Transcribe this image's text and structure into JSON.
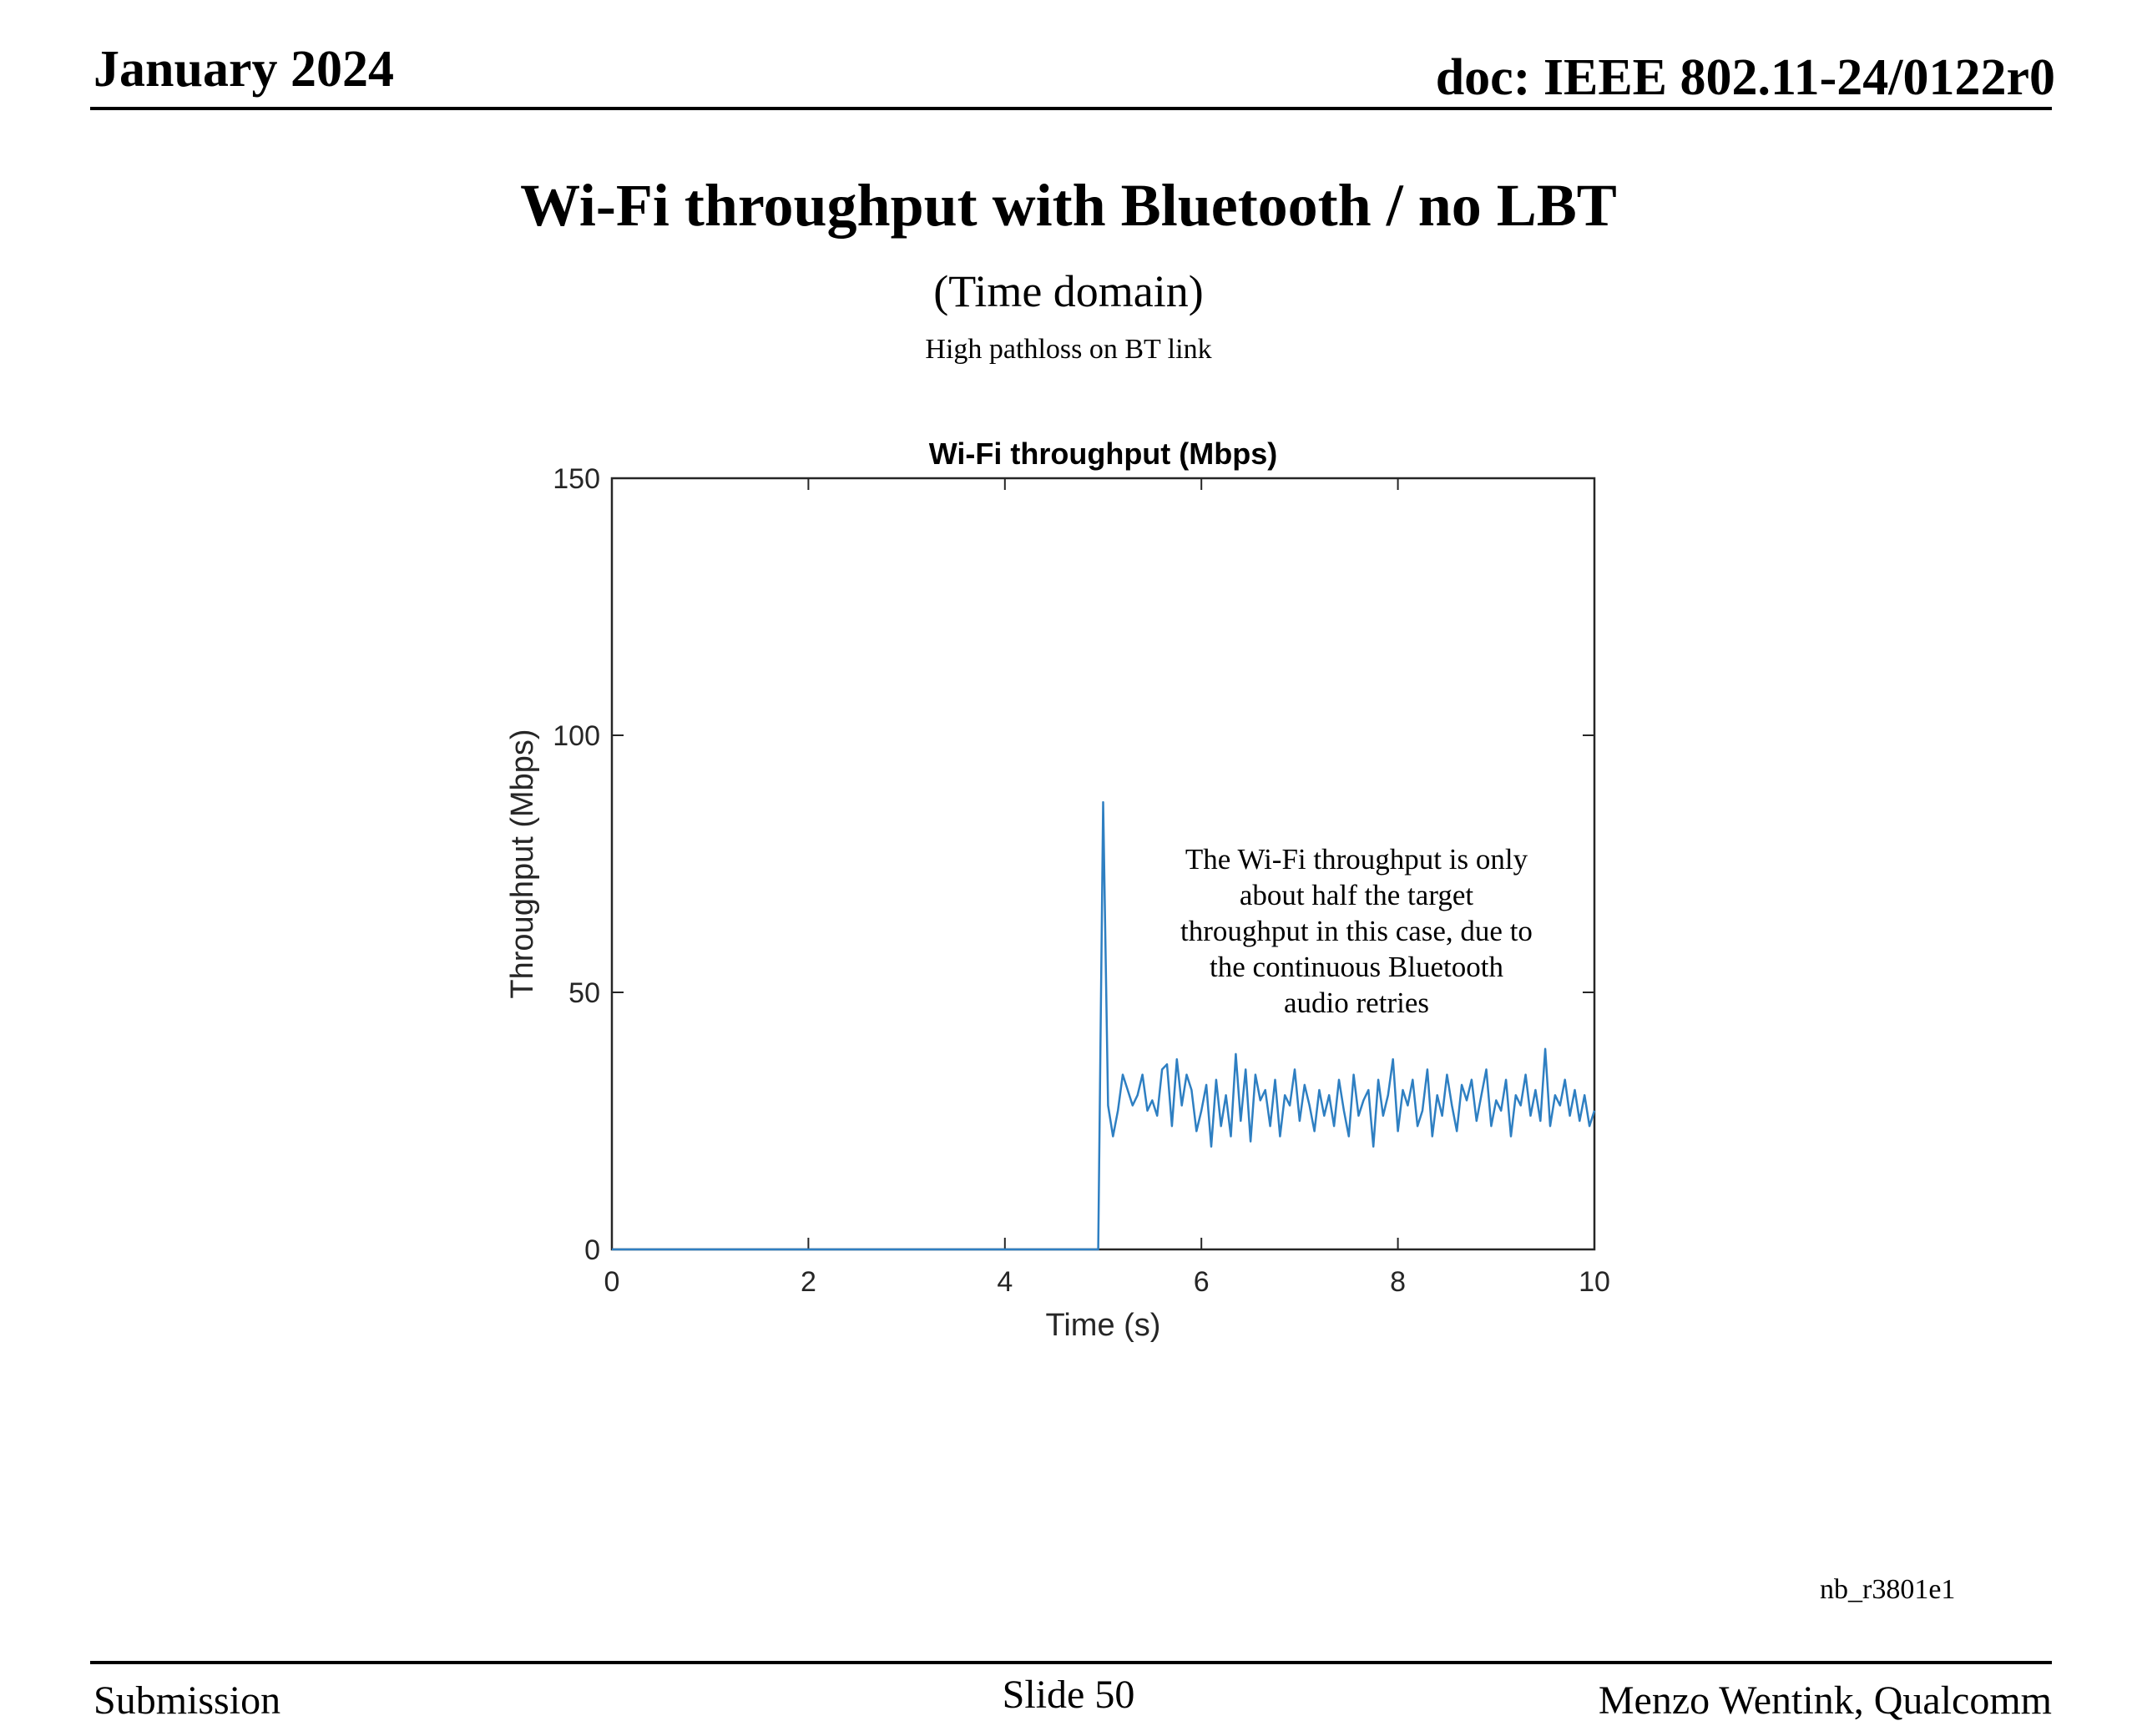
{
  "header": {
    "date": "January 2024",
    "doc": "doc: IEEE 802.11-24/0122r0"
  },
  "slide": {
    "title": "Wi-Fi throughput with Bluetooth / no LBT",
    "subtitle": "(Time domain)",
    "condition": "High pathloss on BT link",
    "annotation_lines": [
      "The Wi-Fi throughput is only",
      "about half the target",
      "throughput in this case, due to",
      "the continuous Bluetooth",
      "audio retries"
    ],
    "tag": "nb_r3801e1"
  },
  "footer": {
    "left": "Submission",
    "center": "Slide 50",
    "right": "Menzo Wentink, Qualcomm"
  },
  "chart_data": {
    "type": "line",
    "title": "Wi-Fi throughput (Mbps)",
    "xlabel": "Time (s)",
    "ylabel": "Throughput (Mbps)",
    "xlim": [
      0,
      10
    ],
    "ylim": [
      0,
      150
    ],
    "xticks": [
      0,
      2,
      4,
      6,
      8,
      10
    ],
    "yticks": [
      0,
      50,
      100,
      150
    ],
    "grid": false,
    "color": "#2e7fc2",
    "series": [
      {
        "x": [
          0,
          0.5,
          1,
          1.5,
          2,
          2.5,
          3,
          3.5,
          4,
          4.5,
          4.95,
          5.0,
          5.05,
          5.1,
          5.15,
          5.2,
          5.25,
          5.3,
          5.35,
          5.4,
          5.45,
          5.5,
          5.55,
          5.6,
          5.65,
          5.7,
          5.75,
          5.8,
          5.85,
          5.9,
          5.95,
          6.0,
          6.05,
          6.1,
          6.15,
          6.2,
          6.25,
          6.3,
          6.35,
          6.4,
          6.45,
          6.5,
          6.55,
          6.6,
          6.65,
          6.7,
          6.75,
          6.8,
          6.85,
          6.9,
          6.95,
          7.0,
          7.05,
          7.1,
          7.15,
          7.2,
          7.25,
          7.3,
          7.35,
          7.4,
          7.45,
          7.5,
          7.55,
          7.6,
          7.65,
          7.7,
          7.75,
          7.8,
          7.85,
          7.9,
          7.95,
          8.0,
          8.05,
          8.1,
          8.15,
          8.2,
          8.25,
          8.3,
          8.35,
          8.4,
          8.45,
          8.5,
          8.55,
          8.6,
          8.65,
          8.7,
          8.75,
          8.8,
          8.85,
          8.9,
          8.95,
          9.0,
          9.05,
          9.1,
          9.15,
          9.2,
          9.25,
          9.3,
          9.35,
          9.4,
          9.45,
          9.5,
          9.55,
          9.6,
          9.65,
          9.7,
          9.75,
          9.8,
          9.85,
          9.9,
          9.95,
          10.0
        ],
        "y": [
          0,
          0,
          0,
          0,
          0,
          0,
          0,
          0,
          0,
          0,
          0,
          87,
          28,
          22,
          27,
          34,
          31,
          28,
          30,
          34,
          27,
          29,
          26,
          35,
          36,
          24,
          37,
          28,
          34,
          31,
          23,
          27,
          32,
          20,
          33,
          24,
          30,
          22,
          38,
          25,
          35,
          21,
          34,
          29,
          31,
          24,
          33,
          22,
          30,
          28,
          35,
          25,
          32,
          28,
          23,
          31,
          26,
          30,
          24,
          33,
          27,
          22,
          34,
          26,
          29,
          31,
          20,
          33,
          26,
          30,
          37,
          23,
          31,
          28,
          33,
          24,
          27,
          35,
          22,
          30,
          26,
          34,
          28,
          23,
          32,
          29,
          33,
          25,
          30,
          35,
          24,
          29,
          27,
          33,
          22,
          30,
          28,
          34,
          26,
          31,
          25,
          39,
          24,
          30,
          28,
          33,
          26,
          31,
          25,
          30,
          24,
          27
        ]
      }
    ]
  }
}
